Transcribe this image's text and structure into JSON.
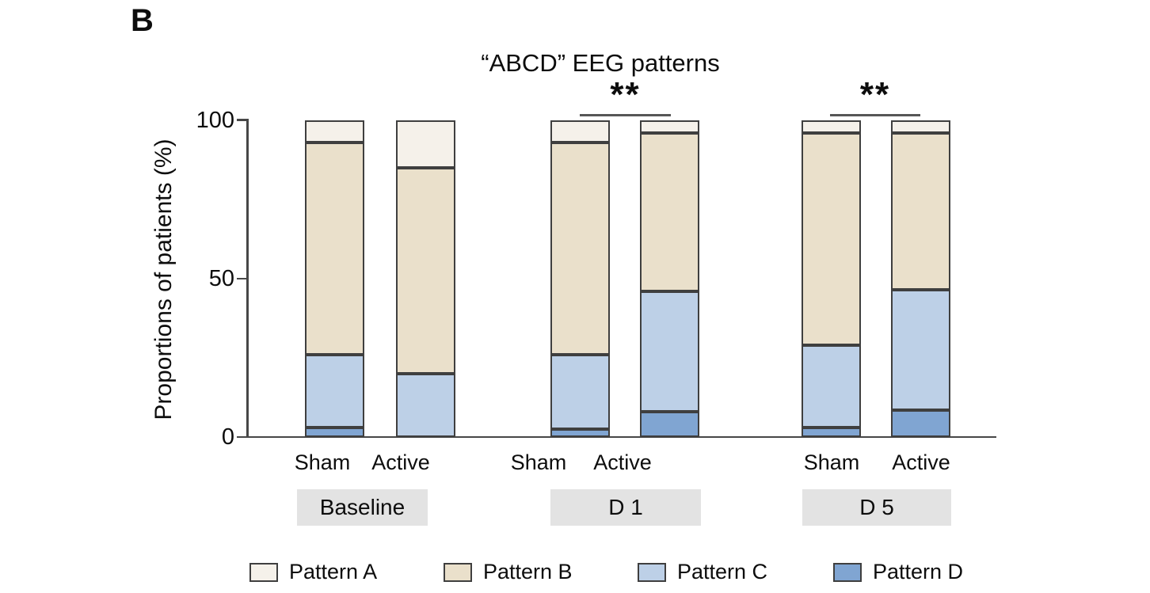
{
  "panel_label": "B",
  "title": "“ABCD” EEG patterns",
  "y_axis": {
    "label": "Proportions of patients (%)",
    "ticks": [
      {
        "value": 100,
        "label": "100"
      },
      {
        "value": 50,
        "label": "50"
      },
      {
        "value": 0,
        "label": "0"
      }
    ]
  },
  "groups": [
    {
      "label": "Baseline",
      "bar_labels": [
        "Sham",
        "Active"
      ]
    },
    {
      "label": "D 1",
      "bar_labels": [
        "Sham",
        "Active"
      ]
    },
    {
      "label": "D 5",
      "bar_labels": [
        "Sham",
        "Active"
      ]
    }
  ],
  "significance": [
    {
      "text": "**",
      "group": "D 1"
    },
    {
      "text": "**",
      "group": "D 5"
    }
  ],
  "legend": [
    {
      "label": "Pattern A",
      "color": "#f5f1ea"
    },
    {
      "label": "Pattern B",
      "color": "#eae0cb"
    },
    {
      "label": "Pattern C",
      "color": "#bdd0e7"
    },
    {
      "label": "Pattern D",
      "color": "#80a5d2"
    }
  ],
  "colors": {
    "segment_border": "#3f3f3f",
    "axis": "#474747",
    "group_box_bg": "#e3e3e3",
    "sig_line": "#565656"
  },
  "chart_data": {
    "type": "bar",
    "stacked": true,
    "title": "“ABCD” EEG patterns",
    "ylabel": "Proportions of patients (%)",
    "ylim": [
      0,
      100
    ],
    "yticks": [
      0,
      50,
      100
    ],
    "grid": false,
    "legend_position": "bottom",
    "groups": [
      "Baseline",
      "D 1",
      "D 5"
    ],
    "categories": [
      "Baseline-Sham",
      "Baseline-Active",
      "D 1-Sham",
      "D 1-Active",
      "D 5-Sham",
      "D 5-Active"
    ],
    "stack_order_bottom_to_top": [
      "Pattern D",
      "Pattern C",
      "Pattern B",
      "Pattern A"
    ],
    "series": [
      {
        "name": "Pattern A",
        "color": "#f5f1ea",
        "values": [
          7,
          15,
          7,
          4,
          4,
          4
        ]
      },
      {
        "name": "Pattern B",
        "color": "#eae0cb",
        "values": [
          67,
          65,
          67,
          50,
          67,
          49.5
        ]
      },
      {
        "name": "Pattern C",
        "color": "#bdd0e7",
        "values": [
          23,
          20,
          23.5,
          38,
          26,
          38
        ]
      },
      {
        "name": "Pattern D",
        "color": "#80a5d2",
        "values": [
          3,
          0,
          2.5,
          8,
          3,
          8.5
        ]
      }
    ],
    "annotations": [
      {
        "text": "**",
        "between": [
          "D 1-Sham",
          "D 1-Active"
        ]
      },
      {
        "text": "**",
        "between": [
          "D 5-Sham",
          "D 5-Active"
        ]
      }
    ]
  }
}
